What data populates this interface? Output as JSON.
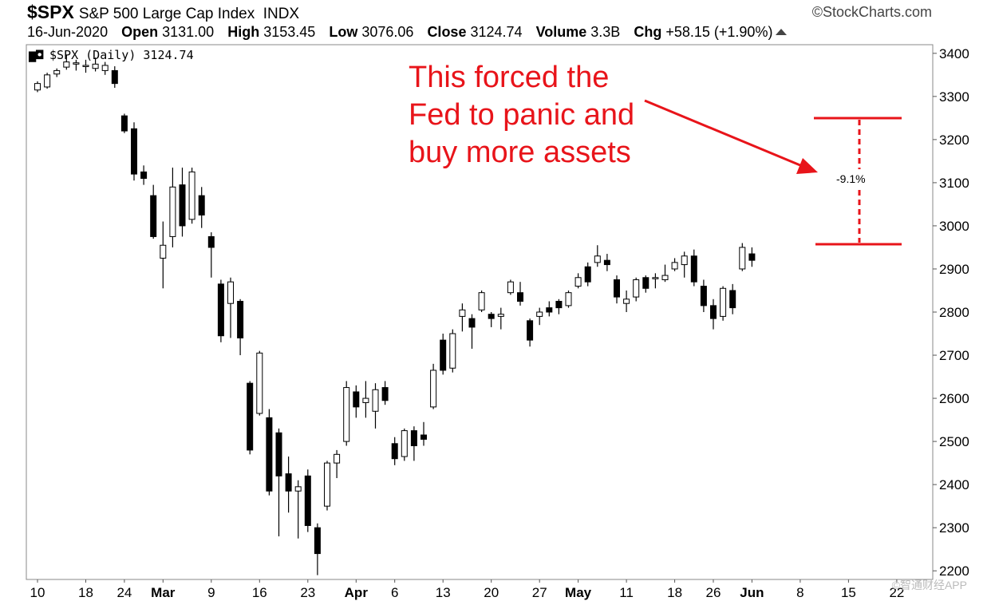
{
  "header": {
    "symbol": "$SPX",
    "name": "S&P 500 Large Cap Index",
    "exchange": "INDX",
    "copyright": "©StockCharts.com",
    "date": "16-Jun-2020",
    "open_label": "Open",
    "open": "3131.00",
    "high_label": "High",
    "high": "3153.45",
    "low_label": "Low",
    "low": "3076.06",
    "close_label": "Close",
    "close": "3124.74",
    "volume_label": "Volume",
    "volume": "3.3B",
    "chg_label": "Chg",
    "chg": "+58.15 (+1.90%)"
  },
  "legend": "$SPX (Daily) 3124.74",
  "annotation": {
    "text_line1": "This forced the",
    "text_line2": "Fed to panic and",
    "text_line3": "buy more assets",
    "drawdown": "-9.1%",
    "color": "#e8141a"
  },
  "watermark": "©智通财经APP",
  "chart_data": {
    "type": "candlestick",
    "ylim": [
      2180,
      3420
    ],
    "y_ticks": [
      2200,
      2300,
      2400,
      2500,
      2600,
      2700,
      2800,
      2900,
      3000,
      3100,
      3200,
      3300,
      3400
    ],
    "x_tick_labels": [
      {
        "label": "10",
        "bold": false,
        "index": 0
      },
      {
        "label": "18",
        "bold": false,
        "index": 5
      },
      {
        "label": "24",
        "bold": false,
        "index": 9
      },
      {
        "label": "Mar",
        "bold": true,
        "index": 13
      },
      {
        "label": "9",
        "bold": false,
        "index": 18
      },
      {
        "label": "16",
        "bold": false,
        "index": 23
      },
      {
        "label": "23",
        "bold": false,
        "index": 28
      },
      {
        "label": "Apr",
        "bold": true,
        "index": 33
      },
      {
        "label": "6",
        "bold": false,
        "index": 37
      },
      {
        "label": "13",
        "bold": false,
        "index": 42
      },
      {
        "label": "20",
        "bold": false,
        "index": 47
      },
      {
        "label": "27",
        "bold": false,
        "index": 52
      },
      {
        "label": "May",
        "bold": true,
        "index": 56
      },
      {
        "label": "11",
        "bold": false,
        "index": 61
      },
      {
        "label": "18",
        "bold": false,
        "index": 66
      },
      {
        "label": "26",
        "bold": false,
        "index": 70
      },
      {
        "label": "Jun",
        "bold": true,
        "index": 74
      },
      {
        "label": "8",
        "bold": false,
        "index": 79
      },
      {
        "label": "15",
        "bold": false,
        "index": 84
      },
      {
        "label": "22",
        "bold": false,
        "index": 89
      }
    ],
    "candles": [
      {
        "o": 3315,
        "h": 3335,
        "l": 3310,
        "c": 3330
      },
      {
        "o": 3322,
        "h": 3355,
        "l": 3318,
        "c": 3350
      },
      {
        "o": 3352,
        "h": 3365,
        "l": 3345,
        "c": 3360
      },
      {
        "o": 3368,
        "h": 3395,
        "l": 3362,
        "c": 3380
      },
      {
        "o": 3375,
        "h": 3385,
        "l": 3360,
        "c": 3378
      },
      {
        "o": 3370,
        "h": 3385,
        "l": 3355,
        "c": 3372
      },
      {
        "o": 3365,
        "h": 3390,
        "l": 3358,
        "c": 3375
      },
      {
        "o": 3360,
        "h": 3380,
        "l": 3350,
        "c": 3372
      },
      {
        "o": 3360,
        "h": 3370,
        "l": 3320,
        "c": 3330
      },
      {
        "o": 3255,
        "h": 3260,
        "l": 3215,
        "c": 3220
      },
      {
        "o": 3225,
        "h": 3240,
        "l": 3105,
        "c": 3120
      },
      {
        "o": 3125,
        "h": 3140,
        "l": 3095,
        "c": 3110
      },
      {
        "o": 3070,
        "h": 3095,
        "l": 2970,
        "c": 2975
      },
      {
        "o": 2925,
        "h": 3010,
        "l": 2855,
        "c": 2955
      },
      {
        "o": 2975,
        "h": 3135,
        "l": 2950,
        "c": 3090
      },
      {
        "o": 3095,
        "h": 3135,
        "l": 2975,
        "c": 3000
      },
      {
        "o": 3015,
        "h": 3135,
        "l": 3005,
        "c": 3125
      },
      {
        "o": 3070,
        "h": 3090,
        "l": 2995,
        "c": 3025
      },
      {
        "o": 2975,
        "h": 2985,
        "l": 2880,
        "c": 2950
      },
      {
        "o": 2865,
        "h": 2875,
        "l": 2730,
        "c": 2745
      },
      {
        "o": 2820,
        "h": 2880,
        "l": 2740,
        "c": 2870
      },
      {
        "o": 2825,
        "h": 2830,
        "l": 2700,
        "c": 2740
      },
      {
        "o": 2635,
        "h": 2640,
        "l": 2470,
        "c": 2480
      },
      {
        "o": 2565,
        "h": 2710,
        "l": 2560,
        "c": 2705
      },
      {
        "o": 2555,
        "h": 2575,
        "l": 2375,
        "c": 2385
      },
      {
        "o": 2520,
        "h": 2530,
        "l": 2280,
        "c": 2420
      },
      {
        "o": 2425,
        "h": 2465,
        "l": 2335,
        "c": 2385
      },
      {
        "o": 2385,
        "h": 2410,
        "l": 2275,
        "c": 2395
      },
      {
        "o": 2420,
        "h": 2435,
        "l": 2290,
        "c": 2305
      },
      {
        "o": 2300,
        "h": 2310,
        "l": 2190,
        "c": 2240
      },
      {
        "o": 2350,
        "h": 2455,
        "l": 2340,
        "c": 2450
      },
      {
        "o": 2450,
        "h": 2480,
        "l": 2415,
        "c": 2470
      },
      {
        "o": 2500,
        "h": 2640,
        "l": 2490,
        "c": 2625
      },
      {
        "o": 2615,
        "h": 2630,
        "l": 2555,
        "c": 2580
      },
      {
        "o": 2590,
        "h": 2640,
        "l": 2555,
        "c": 2600
      },
      {
        "o": 2570,
        "h": 2635,
        "l": 2530,
        "c": 2620
      },
      {
        "o": 2625,
        "h": 2640,
        "l": 2585,
        "c": 2595
      },
      {
        "o": 2495,
        "h": 2510,
        "l": 2445,
        "c": 2460
      },
      {
        "o": 2465,
        "h": 2530,
        "l": 2455,
        "c": 2525
      },
      {
        "o": 2525,
        "h": 2535,
        "l": 2455,
        "c": 2490
      },
      {
        "o": 2515,
        "h": 2545,
        "l": 2490,
        "c": 2505
      },
      {
        "o": 2580,
        "h": 2680,
        "l": 2575,
        "c": 2665
      },
      {
        "o": 2735,
        "h": 2750,
        "l": 2655,
        "c": 2665
      },
      {
        "o": 2670,
        "h": 2760,
        "l": 2660,
        "c": 2750
      },
      {
        "o": 2790,
        "h": 2820,
        "l": 2755,
        "c": 2805
      },
      {
        "o": 2785,
        "h": 2795,
        "l": 2715,
        "c": 2765
      },
      {
        "o": 2805,
        "h": 2850,
        "l": 2800,
        "c": 2845
      },
      {
        "o": 2795,
        "h": 2800,
        "l": 2765,
        "c": 2785
      },
      {
        "o": 2790,
        "h": 2810,
        "l": 2760,
        "c": 2795
      },
      {
        "o": 2845,
        "h": 2875,
        "l": 2840,
        "c": 2870
      },
      {
        "o": 2845,
        "h": 2870,
        "l": 2815,
        "c": 2825
      },
      {
        "o": 2780,
        "h": 2785,
        "l": 2720,
        "c": 2735
      },
      {
        "o": 2790,
        "h": 2810,
        "l": 2770,
        "c": 2800
      },
      {
        "o": 2810,
        "h": 2825,
        "l": 2790,
        "c": 2800
      },
      {
        "o": 2825,
        "h": 2830,
        "l": 2795,
        "c": 2810
      },
      {
        "o": 2815,
        "h": 2850,
        "l": 2810,
        "c": 2845
      },
      {
        "o": 2860,
        "h": 2890,
        "l": 2855,
        "c": 2880
      },
      {
        "o": 2905,
        "h": 2915,
        "l": 2860,
        "c": 2870
      },
      {
        "o": 2915,
        "h": 2955,
        "l": 2905,
        "c": 2930
      },
      {
        "o": 2920,
        "h": 2935,
        "l": 2895,
        "c": 2910
      },
      {
        "o": 2875,
        "h": 2885,
        "l": 2820,
        "c": 2835
      },
      {
        "o": 2820,
        "h": 2850,
        "l": 2800,
        "c": 2830
      },
      {
        "o": 2835,
        "h": 2880,
        "l": 2825,
        "c": 2875
      },
      {
        "o": 2880,
        "h": 2885,
        "l": 2845,
        "c": 2855
      },
      {
        "o": 2880,
        "h": 2890,
        "l": 2855,
        "c": 2880
      },
      {
        "o": 2875,
        "h": 2910,
        "l": 2870,
        "c": 2885
      },
      {
        "o": 2900,
        "h": 2925,
        "l": 2895,
        "c": 2915
      },
      {
        "o": 2910,
        "h": 2940,
        "l": 2880,
        "c": 2930
      },
      {
        "o": 2930,
        "h": 2945,
        "l": 2860,
        "c": 2870
      },
      {
        "o": 2860,
        "h": 2875,
        "l": 2800,
        "c": 2815
      },
      {
        "o": 2815,
        "h": 2830,
        "l": 2760,
        "c": 2785
      },
      {
        "o": 2790,
        "h": 2860,
        "l": 2780,
        "c": 2855
      },
      {
        "o": 2850,
        "h": 2865,
        "l": 2795,
        "c": 2810
      },
      {
        "o": 2900,
        "h": 2960,
        "l": 2895,
        "c": 2950
      },
      {
        "o": 2935,
        "h": 2950,
        "l": 2905,
        "c": 2920
      }
    ]
  }
}
